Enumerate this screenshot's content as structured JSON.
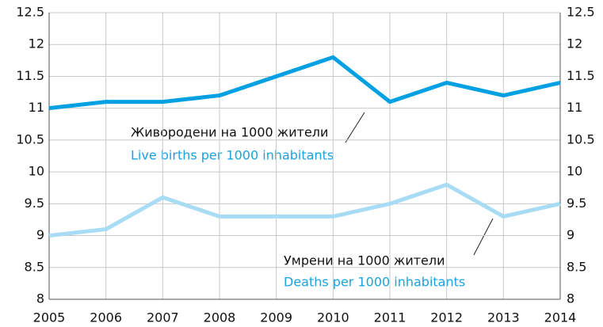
{
  "chart_data": {
    "type": "line",
    "x": [
      2005,
      2006,
      2007,
      2008,
      2009,
      2010,
      2011,
      2012,
      2013,
      2014
    ],
    "xlim": [
      2005,
      2014
    ],
    "xticks": [
      2005,
      2006,
      2007,
      2008,
      2009,
      2010,
      2011,
      2012,
      2013,
      2014
    ],
    "ylim": [
      8,
      12.5
    ],
    "yticks": [
      8,
      8.5,
      9,
      9.5,
      10,
      10.5,
      11,
      11.5,
      12,
      12.5
    ],
    "y2lim": [
      8,
      12.5
    ],
    "y2ticks": [
      8,
      8.5,
      9,
      9.5,
      10,
      10.5,
      11,
      11.5,
      12,
      12.5
    ],
    "grid": true,
    "series": [
      {
        "name": "Live births per 1000 inhabitants",
        "name_bg": "Живородени на 1000 жители",
        "color": "#00a0e3",
        "values": [
          11.0,
          11.1,
          11.1,
          11.2,
          11.5,
          11.8,
          11.1,
          11.4,
          11.2,
          11.4
        ]
      },
      {
        "name": "Deaths per 1000 inhabitants",
        "name_bg": "Умрени на 1000 жители",
        "color": "#a8dcf5",
        "values": [
          9.0,
          9.1,
          9.6,
          9.3,
          9.3,
          9.3,
          9.5,
          9.8,
          9.3,
          9.5
        ]
      }
    ]
  }
}
